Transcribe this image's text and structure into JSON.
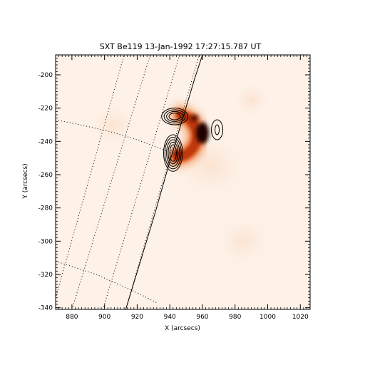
{
  "title": "SXT Be119 13-Jan-1992 17:27:15.787 UT",
  "xlabel": "X (arcsecs)",
  "ylabel": "Y (arcsecs)",
  "colors": {
    "frame": "#000000",
    "background": "#ffffff",
    "map_base": "#fdf1e8",
    "loop_peak": "#1a0200",
    "loop_mid": "#c0390f",
    "loop_outer": "#f3a575"
  },
  "chart_data": {
    "type": "heatmap",
    "title": "SXT Be119 13-Jan-1992 17:27:15.787 UT",
    "xlabel": "X (arcsecs)",
    "ylabel": "Y (arcsecs)",
    "xlim": [
      870,
      1026
    ],
    "ylim": [
      -341,
      -188
    ],
    "x_ticks": [
      880,
      900,
      920,
      940,
      960,
      980,
      1000,
      1020
    ],
    "y_ticks": [
      -200,
      -220,
      -240,
      -260,
      -280,
      -300,
      -320,
      -340
    ],
    "tick_labels_x": [
      "880",
      "900",
      "920",
      "940",
      "960",
      "980",
      "1000",
      "1020"
    ],
    "tick_labels_y": [
      "-200",
      "-220",
      "-240",
      "-260",
      "-280",
      "-300",
      "-320",
      "-340"
    ],
    "colormap": "white-orange-red-black (reversed heat)",
    "features": {
      "loop": {
        "center": [
          948,
          -237
        ],
        "radius": 13,
        "start_angle_deg": 95,
        "end_angle_deg": -105,
        "peak_location": [
          960,
          -235
        ]
      },
      "limb": "solid line (solar limb)",
      "grid": "dotted heliographic grid lines"
    },
    "contours": [
      {
        "center": [
          942,
          -247
        ],
        "levels": 5,
        "radii": [
          [
            2.0,
            5.0
          ],
          [
            3.0,
            6.5
          ],
          [
            4.0,
            8.0
          ],
          [
            5.0,
            9.5
          ],
          [
            5.8,
            11.0
          ]
        ]
      },
      {
        "center": [
          943,
          -225
        ],
        "levels": 4,
        "radii": [
          [
            3.5,
            2.0
          ],
          [
            5.0,
            3.0
          ],
          [
            6.5,
            4.0
          ],
          [
            8.0,
            5.0
          ]
        ]
      },
      {
        "center": [
          969,
          -233
        ],
        "levels": 2,
        "radii": [
          [
            1.3,
            3.0
          ],
          [
            3.5,
            6.0
          ]
        ]
      }
    ]
  }
}
